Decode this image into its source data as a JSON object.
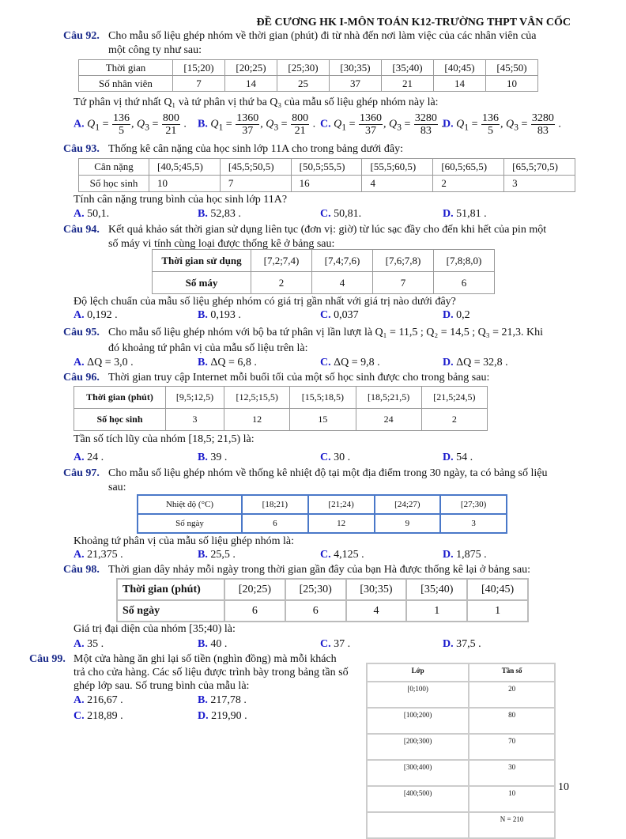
{
  "header": "ĐỀ CƯƠNG HK I-MÔN TOÁN K12-TRƯỜNG THPT VÂN CỐC",
  "page_number": "10",
  "q92": {
    "label": "Câu 92.",
    "line1": "Cho mẫu số liệu ghép nhóm về thời gian (phút) đi từ nhà đến nơi làm việc của các nhân viên của",
    "line2": "một công ty như sau:",
    "table": [
      [
        "Thời gian",
        "[15;20)",
        "[20;25)",
        "[25;30)",
        "[30;35)",
        "[35;40)",
        "[40;45)",
        "[45;50)"
      ],
      [
        "Số nhân viên",
        "7",
        "14",
        "25",
        "37",
        "21",
        "14",
        "10"
      ]
    ],
    "prompt": "Tứ phân vị thứ nhất Q₁ và tứ phân vị thứ ba Q₃ của mẫu số liệu ghép nhóm này là:",
    "options": [
      {
        "letter": "A.",
        "q1n": "136",
        "q1d": "5",
        "q3n": "800",
        "q3d": "21"
      },
      {
        "letter": "B.",
        "q1n": "1360",
        "q1d": "37",
        "q3n": "800",
        "q3d": "21"
      },
      {
        "letter": "C.",
        "q1n": "1360",
        "q1d": "37",
        "q3n": "3280",
        "q3d": "83"
      },
      {
        "letter": "D.",
        "q1n": "136",
        "q1d": "5",
        "q3n": "3280",
        "q3d": "83"
      }
    ]
  },
  "q93": {
    "label": "Câu 93.",
    "line1": "Thống kê cân nặng của học sinh lớp 11A cho trong bảng dưới đây:",
    "table": [
      [
        "Cân nặng",
        "[40,5;45,5)",
        "[45,5;50,5)",
        "[50,5;55,5)",
        "[55,5;60,5)",
        "[60,5;65,5)",
        "[65,5;70,5)"
      ],
      [
        "Số học sinh",
        "10",
        "7",
        "16",
        "4",
        "2",
        "3"
      ]
    ],
    "prompt": "Tính cân nặng trung bình của học sinh lớp 11A?",
    "options": [
      {
        "letter": "A.",
        "text": "50,1."
      },
      {
        "letter": "B.",
        "text": "52,83 ."
      },
      {
        "letter": "C.",
        "text": "50,81."
      },
      {
        "letter": "D.",
        "text": "51,81 ."
      }
    ]
  },
  "q94": {
    "label": "Câu 94.",
    "line1": "Kết quả khảo sát thời gian sử dụng liên tục (đơn vị: giờ) từ lúc sạc đầy cho đến khi hết của pin một",
    "line2": "số máy vi tính cùng loại được thống kê ở bảng sau:",
    "table": [
      [
        "Thời gian sử dụng",
        "[7,2;7,4)",
        "[7,4;7,6)",
        "[7,6;7,8)",
        "[7,8;8,0)"
      ],
      [
        "Số máy",
        "2",
        "4",
        "7",
        "6"
      ]
    ],
    "prompt": "Độ lệch chuẩn của mẫu số liệu ghép nhóm có giá trị gần nhất với giá trị nào dưới đây?",
    "options": [
      {
        "letter": "A.",
        "text": "0,192 ."
      },
      {
        "letter": "B.",
        "text": "0,193 ."
      },
      {
        "letter": "C.",
        "text": "0,037"
      },
      {
        "letter": "D.",
        "text": "0,2"
      }
    ]
  },
  "q95": {
    "label": "Câu 95.",
    "line1": "Cho mẫu số liệu ghép nhóm với bộ ba tứ phân vị lần lượt là Q₁ = 11,5 ; Q₂ = 14,5 ; Q₃ = 21,3. Khi",
    "line2": "đó khoảng tứ phân vị của mẫu số liệu trên là:",
    "options": [
      {
        "letter": "A.",
        "text": "ΔQ = 3,0 ."
      },
      {
        "letter": "B.",
        "text": "ΔQ = 6,8 ."
      },
      {
        "letter": "C.",
        "text": "ΔQ = 9,8 ."
      },
      {
        "letter": "D.",
        "text": "ΔQ = 32,8 ."
      }
    ]
  },
  "q96": {
    "label": "Câu 96.",
    "line1": "Thời gian truy cập Internet mỗi buổi tối của một số học sinh được cho trong bảng sau:",
    "table": [
      [
        "Thời gian (phút)",
        "[9,5;12,5)",
        "[12,5;15,5)",
        "[15,5;18,5)",
        "[18,5;21,5)",
        "[21,5;24,5)"
      ],
      [
        "Số học sinh",
        "3",
        "12",
        "15",
        "24",
        "2"
      ]
    ],
    "prompt": "Tần số tích lũy của nhóm [18,5; 21,5) là:",
    "options": [
      {
        "letter": "A.",
        "text": "24 ."
      },
      {
        "letter": "B.",
        "text": "39 ."
      },
      {
        "letter": "C.",
        "text": "30 ."
      },
      {
        "letter": "D.",
        "text": "54 ."
      }
    ]
  },
  "q97": {
    "label": "Câu 97.",
    "line1": "Cho mẫu số liệu ghép nhóm về thống kê nhiệt độ tại một địa điểm trong 30 ngày, ta có bảng số liệu",
    "line2": "sau:",
    "table": [
      [
        "Nhiệt độ (°C)",
        "[18;21)",
        "[21;24)",
        "[24;27)",
        "[27;30)"
      ],
      [
        "Số ngày",
        "6",
        "12",
        "9",
        "3"
      ]
    ],
    "prompt": "Khoảng tứ phân vị của mẫu số liệu ghép nhóm là:",
    "options": [
      {
        "letter": "A.",
        "text": "21,375 ."
      },
      {
        "letter": "B.",
        "text": "25,5 ."
      },
      {
        "letter": "C.",
        "text": "4,125 ."
      },
      {
        "letter": "D.",
        "text": "1,875 ."
      }
    ]
  },
  "q98": {
    "label": "Câu 98.",
    "line1": "Thời gian dây nhảy mỗi ngày trong thời gian gần đây của bạn Hà được thống kê lại ở bảng sau:",
    "table": [
      [
        "Thời gian (phút)",
        "[20;25)",
        "[25;30)",
        "[30;35)",
        "[35;40)",
        "[40;45)"
      ],
      [
        "Số ngày",
        "6",
        "6",
        "4",
        "1",
        "1"
      ]
    ],
    "prompt": "Giá trị đại diện của nhóm [35;40) là:",
    "options": [
      {
        "letter": "A.",
        "text": "35 ."
      },
      {
        "letter": "B.",
        "text": "40 ."
      },
      {
        "letter": "C.",
        "text": "37 ."
      },
      {
        "letter": "D.",
        "text": "37,5 ."
      }
    ]
  },
  "q99": {
    "label": "Câu 99.",
    "line1": "Một cửa hàng ăn ghi lại số tiền (nghìn đồng) mà mỗi khách",
    "line2": "trả cho cửa hàng. Các số liệu được trình bày trong bảng tần số",
    "line3": "ghép lớp sau. Số trung bình của mẫu là:",
    "table": [
      [
        "Lớp",
        "Tần số"
      ],
      [
        "[0;100)",
        "20"
      ],
      [
        "[100;200)",
        "80"
      ],
      [
        "[200;300)",
        "70"
      ],
      [
        "[300;400)",
        "30"
      ],
      [
        "[400;500)",
        "10"
      ],
      [
        "",
        "N = 210"
      ]
    ],
    "options": [
      {
        "letter": "A.",
        "text": "216,67 ."
      },
      {
        "letter": "B.",
        "text": "217,78 ."
      },
      {
        "letter": "C.",
        "text": "218,89 ."
      },
      {
        "letter": "D.",
        "text": "219,90 ."
      }
    ]
  }
}
